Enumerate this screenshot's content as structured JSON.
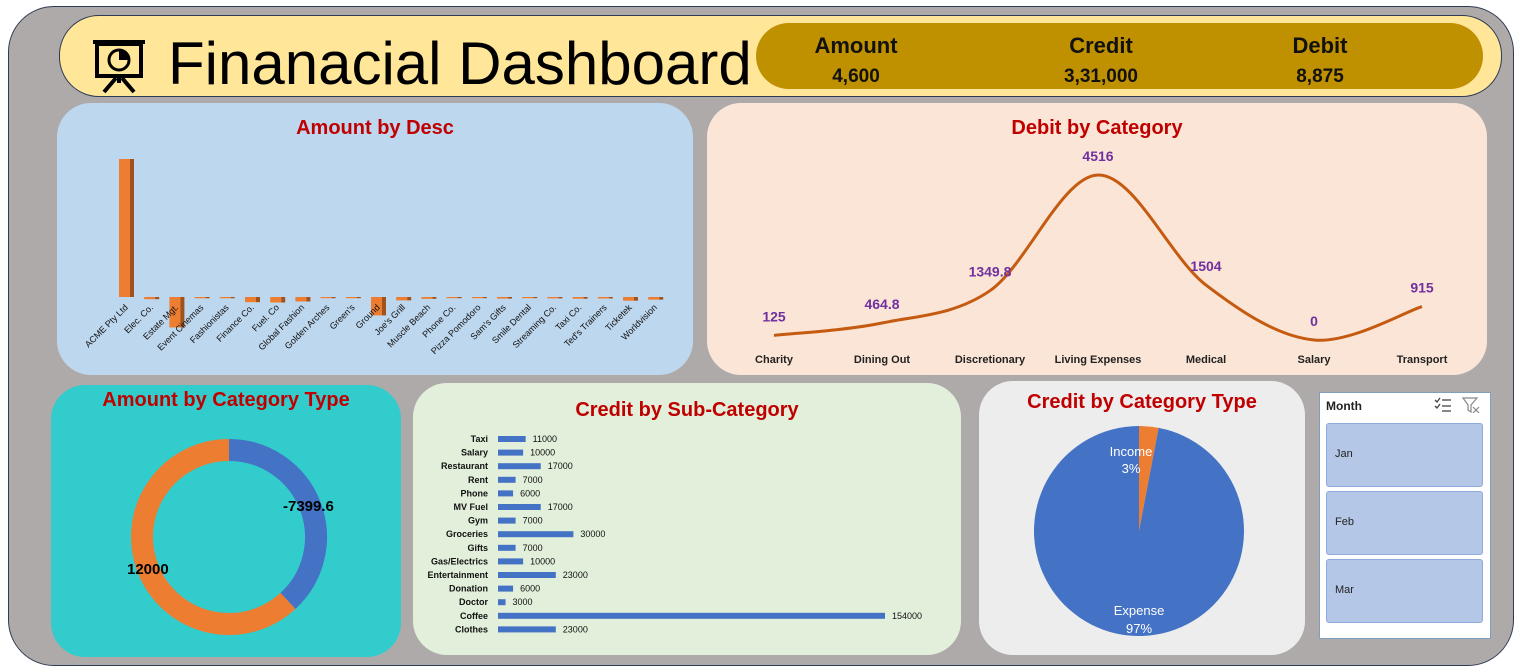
{
  "header": {
    "title": "Finanacial Dashboard",
    "kpis": [
      {
        "label": "Amount",
        "value": "4,600"
      },
      {
        "label": "Credit",
        "value": "3,31,000"
      },
      {
        "label": "Debit",
        "value": "8,875"
      }
    ]
  },
  "colors": {
    "frame": "#aeaaaa",
    "header": "#ffe699",
    "kpi_box": "#bf9000",
    "orange": "#ed7d31",
    "blue": "#4472c4",
    "title_red": "#c00000",
    "purple": "#7030a0"
  },
  "slicer": {
    "title": "Month",
    "items": [
      "Jan",
      "Feb",
      "Mar"
    ],
    "icons": [
      "multi-select-icon",
      "clear-filter-icon"
    ]
  },
  "chart_data": [
    {
      "id": "amount_by_desc",
      "type": "bar",
      "title": "Amount by Desc",
      "categories": [
        "ACME Pty Ltd",
        "Elec. Co.",
        "Estate Mgt.",
        "Event Cinemas",
        "Fashionistas",
        "Finance Co.",
        "Fuel. Co",
        "Global Fashion",
        "Golden Arches",
        "Green's",
        "Ground",
        "Joe's Grill",
        "Muscle Beach",
        "Phone Co.",
        "Pizza Pomodoro",
        "Sam's Gifts",
        "Smile Dental",
        "Streaming Co.",
        "Taxi Co.",
        "Ted's Trainers",
        "Ticketek",
        "Worldvision"
      ],
      "values": [
        12000,
        -190,
        -2650,
        -110,
        -110,
        -450,
        -480,
        -390,
        -90,
        -50,
        -1600,
        -290,
        -160,
        -90,
        -80,
        -140,
        -90,
        -120,
        -150,
        -130,
        -320,
        -230
      ]
    },
    {
      "id": "debit_by_category",
      "type": "line",
      "title": "Debit by Category",
      "categories": [
        "Charity",
        "Dining Out",
        "Discretionary",
        "Living Expenses",
        "Medical",
        "Salary",
        "Transport"
      ],
      "values": [
        125,
        464.8,
        1349.8,
        4516,
        1504,
        0,
        915
      ],
      "value_labels": [
        "125",
        "464.8",
        "1349.8",
        "4516",
        "1504",
        "0",
        "915"
      ]
    },
    {
      "id": "amount_by_category_type",
      "type": "pie",
      "title": "Amount by Category Type",
      "labels": [
        "12000",
        "-7399.6"
      ],
      "values": [
        12000,
        -7399.6
      ],
      "colors": [
        "#ed7d31",
        "#4472c4"
      ],
      "donut": true
    },
    {
      "id": "credit_by_sub_category",
      "type": "bar",
      "orientation": "horizontal",
      "title": "Credit by Sub-Category",
      "categories": [
        "Taxi",
        "Salary",
        "Restaurant",
        "Rent",
        "Phone",
        "MV Fuel",
        "Gym",
        "Groceries",
        "Gifts",
        "Gas/Electrics",
        "Entertainment",
        "Donation",
        "Doctor",
        "Coffee",
        "Clothes"
      ],
      "values": [
        11000,
        10000,
        17000,
        7000,
        6000,
        17000,
        7000,
        30000,
        7000,
        10000,
        23000,
        6000,
        3000,
        154000,
        23000
      ]
    },
    {
      "id": "credit_by_category_type",
      "type": "pie",
      "title": "Credit by Category Type",
      "labels": [
        "Income",
        "Expense"
      ],
      "values": [
        3,
        97
      ],
      "percent_labels": [
        "3%",
        "97%"
      ],
      "colors": [
        "#ed7d31",
        "#4472c4"
      ]
    }
  ]
}
